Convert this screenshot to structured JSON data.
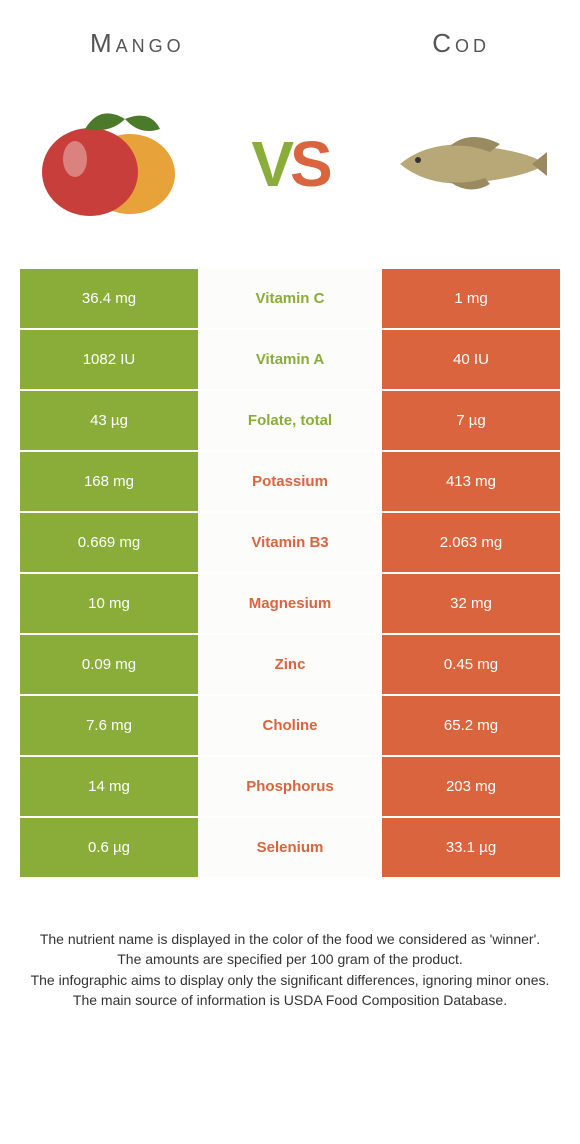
{
  "colors": {
    "green": "#8aad3a",
    "orange": "#d9643e",
    "mid_bg": "#fcfcfa",
    "text": "#333333"
  },
  "header": {
    "left_title": "Mango",
    "right_title": "Cod",
    "vs_v": "V",
    "vs_s": "S"
  },
  "rows": [
    {
      "left": "36.4 mg",
      "mid": "Vitamin C",
      "right": "1 mg",
      "winner": "left"
    },
    {
      "left": "1082 IU",
      "mid": "Vitamin A",
      "right": "40 IU",
      "winner": "left"
    },
    {
      "left": "43 µg",
      "mid": "Folate, total",
      "right": "7 µg",
      "winner": "left"
    },
    {
      "left": "168 mg",
      "mid": "Potassium",
      "right": "413 mg",
      "winner": "right"
    },
    {
      "left": "0.669 mg",
      "mid": "Vitamin B3",
      "right": "2.063 mg",
      "winner": "right"
    },
    {
      "left": "10 mg",
      "mid": "Magnesium",
      "right": "32 mg",
      "winner": "right"
    },
    {
      "left": "0.09 mg",
      "mid": "Zinc",
      "right": "0.45 mg",
      "winner": "right"
    },
    {
      "left": "7.6 mg",
      "mid": "Choline",
      "right": "65.2 mg",
      "winner": "right"
    },
    {
      "left": "14 mg",
      "mid": "Phosphorus",
      "right": "203 mg",
      "winner": "right"
    },
    {
      "left": "0.6 µg",
      "mid": "Selenium",
      "right": "33.1 µg",
      "winner": "right"
    }
  ],
  "footer": {
    "line1": "The nutrient name is displayed in the color of the food we considered as 'winner'.",
    "line2": "The amounts are specified per 100 gram of the product.",
    "line3": "The infographic aims to display only the significant differences, ignoring minor ones.",
    "line4": "The main source of information is USDA Food Composition Database."
  }
}
